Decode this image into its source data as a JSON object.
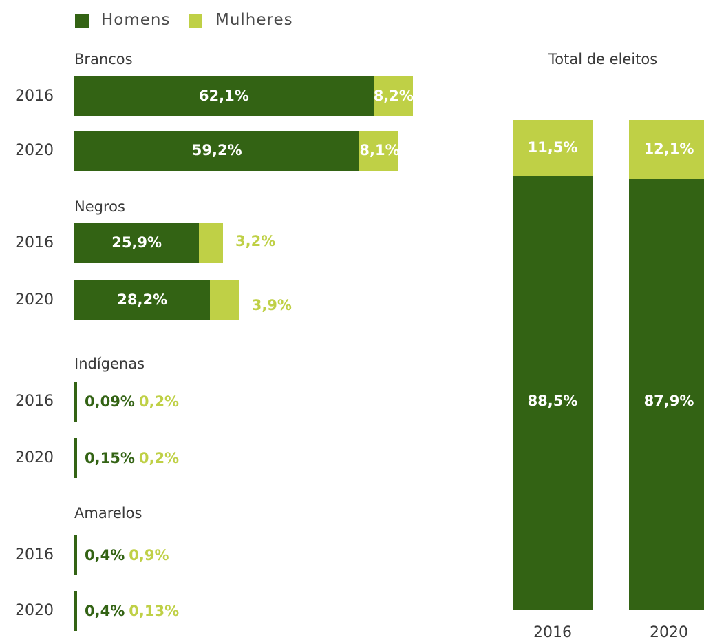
{
  "colors": {
    "men": "#336314",
    "women": "#bfd046",
    "text": "#3a3a3a"
  },
  "legend": [
    {
      "name": "Homens",
      "color": "#336314"
    },
    {
      "name": "Mulheres",
      "color": "#bfd046"
    }
  ],
  "chart_data": [
    {
      "type": "bar",
      "orientation": "horizontal",
      "stacked": true,
      "title": "",
      "groups": [
        {
          "name": "Brancos",
          "rows": [
            {
              "year": "2016",
              "men": 62.1,
              "women": 8.2,
              "men_label": "62,1%",
              "women_label": "8,2%"
            },
            {
              "year": "2020",
              "men": 59.2,
              "women": 8.1,
              "men_label": "59,2%",
              "women_label": "8,1%"
            }
          ]
        },
        {
          "name": "Negros",
          "rows": [
            {
              "year": "2016",
              "men": 25.9,
              "women": 3.2,
              "men_label": "25,9%",
              "women_label": "3,2%"
            },
            {
              "year": "2020",
              "men": 28.2,
              "women": 3.9,
              "men_label": "28,2%",
              "women_label": "3,9%"
            }
          ]
        },
        {
          "name": "Indígenas",
          "rows": [
            {
              "year": "2016",
              "men": 0.09,
              "women": 0.2,
              "men_label": "0,09%",
              "women_label": "0,2%"
            },
            {
              "year": "2020",
              "men": 0.15,
              "women": 0.2,
              "men_label": "0,15%",
              "women_label": "0,2%"
            }
          ]
        },
        {
          "name": "Amarelos",
          "rows": [
            {
              "year": "2016",
              "men": 0.4,
              "women": 0.9,
              "men_label": "0,4%",
              "women_label": "0,9%"
            },
            {
              "year": "2020",
              "men": 0.4,
              "women": 0.13,
              "men_label": "0,4%",
              "women_label": "0,13%"
            }
          ]
        }
      ]
    },
    {
      "type": "bar",
      "orientation": "vertical",
      "stacked": true,
      "title": "Total de eleitos",
      "categories": [
        "2016",
        "2020"
      ],
      "series": [
        {
          "name": "Homens",
          "values": [
            88.5,
            87.9
          ],
          "labels": [
            "88,5%",
            "87,9%"
          ]
        },
        {
          "name": "Mulheres",
          "values": [
            11.5,
            12.1
          ],
          "labels": [
            "11,5%",
            "12,1%"
          ]
        }
      ],
      "ylim": [
        0,
        100
      ]
    }
  ]
}
